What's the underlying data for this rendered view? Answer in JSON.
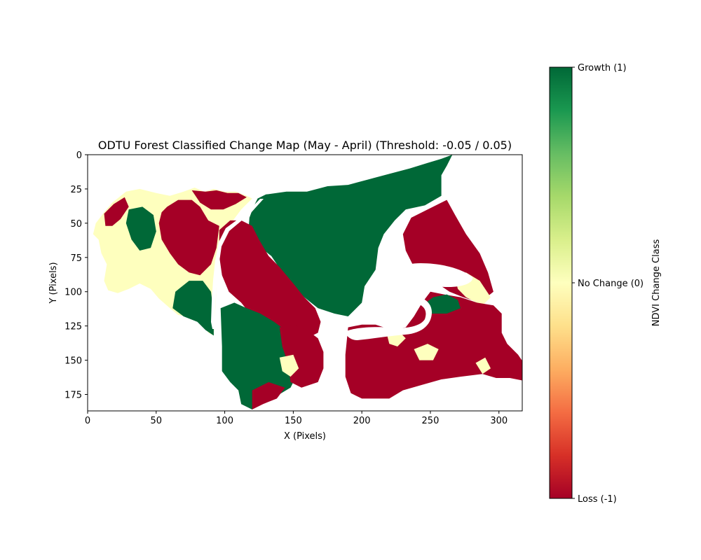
{
  "chart_data": {
    "type": "heatmap",
    "title": "ODTU Forest Classified Change Map (May - April) (Threshold: -0.05 / 0.05)",
    "xlabel": "X (Pixels)",
    "ylabel": "Y (Pixels)",
    "xlim": [
      0,
      317
    ],
    "ylim": [
      187,
      0
    ],
    "x_ticks": [
      0,
      50,
      100,
      150,
      200,
      250,
      300
    ],
    "y_ticks": [
      0,
      25,
      50,
      75,
      100,
      125,
      150,
      175
    ],
    "grid": false,
    "colormap": "RdYlGn",
    "colorbar": {
      "label": "NDVI Change Class",
      "min": -1,
      "max": 1,
      "ticks": [
        {
          "value": 1,
          "label": "Growth (1)"
        },
        {
          "value": 0,
          "label": "No Change (0)"
        },
        {
          "value": -1,
          "label": "Loss (-1)"
        }
      ]
    },
    "classes": [
      {
        "value": -1,
        "label": "Loss",
        "color": "#a50026"
      },
      {
        "value": 0,
        "label": "No Change",
        "color": "#feffbe"
      },
      {
        "value": 1,
        "label": "Growth",
        "color": "#006837"
      }
    ],
    "regions": [
      {
        "class": 0,
        "polygon": [
          [
            12,
            42
          ],
          [
            18,
            35
          ],
          [
            28,
            27
          ],
          [
            38,
            25
          ],
          [
            50,
            28
          ],
          [
            60,
            30
          ],
          [
            70,
            27
          ],
          [
            78,
            24
          ],
          [
            85,
            27
          ],
          [
            92,
            25
          ],
          [
            100,
            27
          ],
          [
            108,
            27
          ],
          [
            116,
            30
          ],
          [
            120,
            32
          ],
          [
            112,
            40
          ],
          [
            103,
            52
          ],
          [
            98,
            65
          ],
          [
            95,
            80
          ],
          [
            94,
            98
          ],
          [
            93,
            115
          ],
          [
            92,
            132
          ],
          [
            88,
            130
          ],
          [
            84,
            122
          ],
          [
            78,
            120
          ],
          [
            72,
            118
          ],
          [
            66,
            117
          ],
          [
            60,
            112
          ],
          [
            52,
            105
          ],
          [
            46,
            98
          ],
          [
            38,
            94
          ],
          [
            30,
            98
          ],
          [
            22,
            101
          ],
          [
            15,
            99
          ],
          [
            12,
            92
          ],
          [
            14,
            80
          ],
          [
            10,
            72
          ],
          [
            8,
            62
          ],
          [
            4,
            58
          ],
          [
            6,
            50
          ]
        ]
      },
      {
        "class": -1,
        "polygon": [
          [
            58,
            38
          ],
          [
            66,
            33
          ],
          [
            76,
            33
          ],
          [
            82,
            38
          ],
          [
            88,
            48
          ],
          [
            96,
            52
          ],
          [
            94,
            68
          ],
          [
            90,
            80
          ],
          [
            82,
            88
          ],
          [
            74,
            86
          ],
          [
            66,
            80
          ],
          [
            60,
            72
          ],
          [
            54,
            62
          ],
          [
            52,
            50
          ],
          [
            54,
            42
          ]
        ]
      },
      {
        "class": -1,
        "polygon": [
          [
            76,
            26
          ],
          [
            86,
            27
          ],
          [
            94,
            26
          ],
          [
            102,
            28
          ],
          [
            110,
            28
          ],
          [
            116,
            31
          ],
          [
            108,
            36
          ],
          [
            99,
            40
          ],
          [
            90,
            40
          ],
          [
            82,
            35
          ]
        ]
      },
      {
        "class": -1,
        "polygon": [
          [
            12,
            43
          ],
          [
            19,
            36
          ],
          [
            27,
            31
          ],
          [
            30,
            38
          ],
          [
            24,
            47
          ],
          [
            18,
            52
          ],
          [
            13,
            52
          ]
        ]
      },
      {
        "class": 1,
        "polygon": [
          [
            30,
            40
          ],
          [
            40,
            38
          ],
          [
            48,
            44
          ],
          [
            50,
            56
          ],
          [
            46,
            68
          ],
          [
            38,
            70
          ],
          [
            32,
            62
          ],
          [
            28,
            50
          ]
        ]
      },
      {
        "class": 1,
        "polygon": [
          [
            64,
            100
          ],
          [
            74,
            92
          ],
          [
            84,
            92
          ],
          [
            90,
            100
          ],
          [
            92,
            116
          ],
          [
            92,
            132
          ],
          [
            86,
            128
          ],
          [
            80,
            122
          ],
          [
            70,
            118
          ],
          [
            62,
            112
          ]
        ]
      },
      {
        "class": 1,
        "polygon": [
          [
            124,
            32
          ],
          [
            130,
            29
          ],
          [
            145,
            27
          ],
          [
            160,
            27
          ],
          [
            175,
            23
          ],
          [
            190,
            22
          ],
          [
            205,
            18
          ],
          [
            220,
            14
          ],
          [
            235,
            10
          ],
          [
            248,
            6
          ],
          [
            258,
            3
          ],
          [
            266,
            0
          ],
          [
            262,
            8
          ],
          [
            258,
            15
          ],
          [
            258,
            30
          ],
          [
            246,
            37
          ],
          [
            232,
            40
          ],
          [
            224,
            48
          ],
          [
            216,
            58
          ],
          [
            212,
            68
          ],
          [
            210,
            84
          ],
          [
            202,
            96
          ],
          [
            200,
            108
          ],
          [
            190,
            118
          ],
          [
            180,
            116
          ],
          [
            168,
            112
          ],
          [
            158,
            104
          ],
          [
            150,
            96
          ],
          [
            142,
            86
          ],
          [
            134,
            74
          ],
          [
            124,
            66
          ],
          [
            117,
            60
          ],
          [
            118,
            46
          ],
          [
            121,
            38
          ]
        ]
      },
      {
        "class": -1,
        "polygon": [
          [
            248,
            40
          ],
          [
            262,
            33
          ],
          [
            268,
            44
          ],
          [
            276,
            58
          ],
          [
            286,
            72
          ],
          [
            292,
            86
          ],
          [
            296,
            100
          ],
          [
            286,
            108
          ],
          [
            274,
            104
          ],
          [
            264,
            100
          ],
          [
            258,
            96
          ],
          [
            251,
            94
          ],
          [
            246,
            88
          ],
          [
            238,
            82
          ],
          [
            232,
            70
          ],
          [
            230,
            58
          ],
          [
            236,
            46
          ]
        ]
      },
      {
        "class": 0,
        "polygon": [
          [
            268,
            90
          ],
          [
            276,
            86
          ],
          [
            286,
            92
          ],
          [
            294,
            104
          ],
          [
            288,
            110
          ],
          [
            276,
            104
          ],
          [
            270,
            98
          ]
        ]
      },
      {
        "class": -1,
        "polygon": [
          [
            96,
            55
          ],
          [
            104,
            48
          ],
          [
            112,
            48
          ],
          [
            120,
            52
          ],
          [
            125,
            62
          ],
          [
            132,
            74
          ],
          [
            140,
            82
          ],
          [
            150,
            94
          ],
          [
            158,
            104
          ],
          [
            166,
            112
          ],
          [
            170,
            122
          ],
          [
            168,
            130
          ],
          [
            160,
            134
          ],
          [
            150,
            130
          ],
          [
            140,
            126
          ],
          [
            130,
            124
          ],
          [
            120,
            118
          ],
          [
            112,
            108
          ],
          [
            103,
            100
          ],
          [
            98,
            88
          ],
          [
            96,
            74
          ]
        ]
      },
      {
        "class": 1,
        "polygon": [
          [
            97,
            112
          ],
          [
            107,
            108
          ],
          [
            116,
            112
          ],
          [
            126,
            116
          ],
          [
            136,
            122
          ],
          [
            144,
            128
          ],
          [
            148,
            140
          ],
          [
            150,
            150
          ],
          [
            152,
            162
          ],
          [
            148,
            170
          ],
          [
            138,
            176
          ],
          [
            128,
            180
          ],
          [
            120,
            186
          ],
          [
            112,
            182
          ],
          [
            110,
            172
          ],
          [
            104,
            166
          ],
          [
            98,
            158
          ],
          [
            98,
            140
          ]
        ]
      },
      {
        "class": -1,
        "polygon": [
          [
            140,
            126
          ],
          [
            150,
            124
          ],
          [
            160,
            128
          ],
          [
            168,
            134
          ],
          [
            172,
            144
          ],
          [
            172,
            156
          ],
          [
            168,
            166
          ],
          [
            156,
            170
          ],
          [
            148,
            166
          ],
          [
            146,
            152
          ],
          [
            142,
            140
          ]
        ]
      },
      {
        "class": 0,
        "polygon": [
          [
            140,
            148
          ],
          [
            150,
            146
          ],
          [
            154,
            156
          ],
          [
            148,
            162
          ],
          [
            142,
            158
          ]
        ]
      },
      {
        "class": -1,
        "polygon": [
          [
            120,
            172
          ],
          [
            132,
            166
          ],
          [
            144,
            170
          ],
          [
            138,
            178
          ],
          [
            128,
            182
          ],
          [
            120,
            186
          ]
        ]
      },
      {
        "class": -1,
        "polygon": [
          [
            190,
            126
          ],
          [
            200,
            124
          ],
          [
            210,
            124
          ],
          [
            222,
            128
          ],
          [
            232,
            126
          ],
          [
            238,
            118
          ],
          [
            244,
            108
          ],
          [
            250,
            100
          ],
          [
            260,
            102
          ],
          [
            272,
            104
          ],
          [
            284,
            108
          ],
          [
            296,
            110
          ],
          [
            302,
            116
          ],
          [
            302,
            130
          ],
          [
            306,
            138
          ],
          [
            314,
            146
          ],
          [
            318,
            152
          ],
          [
            318,
            165
          ],
          [
            308,
            163
          ],
          [
            298,
            163
          ],
          [
            288,
            160
          ],
          [
            272,
            162
          ],
          [
            258,
            164
          ],
          [
            244,
            168
          ],
          [
            230,
            172
          ],
          [
            220,
            178
          ],
          [
            200,
            178
          ],
          [
            192,
            174
          ],
          [
            188,
            162
          ],
          [
            188,
            146
          ]
        ]
      },
      {
        "class": 0,
        "polygon": [
          [
            218,
            130
          ],
          [
            226,
            128
          ],
          [
            232,
            134
          ],
          [
            226,
            140
          ],
          [
            220,
            138
          ]
        ]
      },
      {
        "class": 0,
        "polygon": [
          [
            238,
            142
          ],
          [
            248,
            138
          ],
          [
            256,
            142
          ],
          [
            252,
            150
          ],
          [
            242,
            150
          ]
        ]
      },
      {
        "class": 0,
        "polygon": [
          [
            283,
            152
          ],
          [
            290,
            148
          ],
          [
            294,
            156
          ],
          [
            288,
            160
          ]
        ]
      },
      {
        "class": 1,
        "polygon": [
          [
            244,
            110
          ],
          [
            252,
            104
          ],
          [
            262,
            102
          ],
          [
            270,
            106
          ],
          [
            272,
            112
          ],
          [
            262,
            116
          ],
          [
            250,
            116
          ]
        ]
      }
    ]
  }
}
